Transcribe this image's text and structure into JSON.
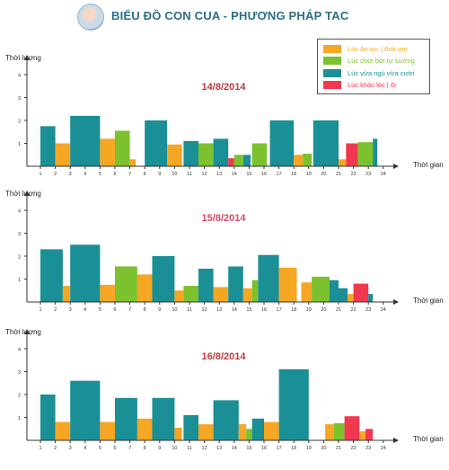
{
  "header": {
    "title": "BIỂU ĐỒ CON CUA - PHƯƠNG PHÁP TAC"
  },
  "legend": [
    {
      "label": "Lúc ăn no, | thỏi ưm",
      "color": "#f5a623"
    },
    {
      "label": "Lúc chơi bời tự sướng",
      "color": "#7bc22e"
    },
    {
      "label": "Lúc vừa ngủ vừa cười",
      "color": "#1a8f96"
    },
    {
      "label": "Lúc khóc lóc | ôi",
      "color": "#f0384e"
    }
  ],
  "chart_data": [
    {
      "type": "bar",
      "title": "14/8/2014",
      "ylabel": "Thời lượng",
      "xlabel": "Thời gian",
      "x_ticks": [
        "1",
        "2",
        "3",
        "4",
        "5",
        "6",
        "7",
        "8",
        "9",
        "10",
        "11",
        "12",
        "13",
        "14",
        "15",
        "16",
        "17",
        "18",
        "19",
        "20",
        "21",
        "22",
        "23",
        "24"
      ],
      "y_ticks": [
        "1",
        "2",
        "3",
        "4"
      ],
      "ylim": [
        0,
        4.5
      ],
      "bars": [
        {
          "start": 1,
          "end": 2,
          "value": 1.75,
          "category": "Lúc vừa ngủ vừa cười"
        },
        {
          "start": 2,
          "end": 3,
          "value": 1.0,
          "category": "Lúc ăn no, | thỏi ưm"
        },
        {
          "start": 3,
          "end": 5,
          "value": 2.2,
          "category": "Lúc vừa ngủ vừa cười"
        },
        {
          "start": 5,
          "end": 6,
          "value": 1.2,
          "category": "Lúc ăn no, | thỏi ưm"
        },
        {
          "start": 6,
          "end": 7,
          "value": 1.55,
          "category": "Lúc chơi bời tự sướng"
        },
        {
          "start": 7,
          "end": 7.4,
          "value": 0.3,
          "category": "Lúc ăn no, | thỏi ưm"
        },
        {
          "start": 8,
          "end": 9.5,
          "value": 2.0,
          "category": "Lúc vừa ngủ vừa cười"
        },
        {
          "start": 9.5,
          "end": 10.5,
          "value": 0.95,
          "category": "Lúc ăn no, | thỏi ưm"
        },
        {
          "start": 10.6,
          "end": 11.6,
          "value": 1.1,
          "category": "Lúc vừa ngủ vừa cười"
        },
        {
          "start": 11.6,
          "end": 12.6,
          "value": 1.0,
          "category": "Lúc chơi bời tự sướng"
        },
        {
          "start": 12.6,
          "end": 13.6,
          "value": 1.2,
          "category": "Lúc vừa ngủ vừa cười"
        },
        {
          "start": 13.6,
          "end": 14,
          "value": 0.35,
          "category": "Lúc khóc lóc | ôi"
        },
        {
          "start": 14,
          "end": 14.6,
          "value": 0.5,
          "category": "Lúc chơi bời tự sướng"
        },
        {
          "start": 14.6,
          "end": 15.1,
          "value": 0.5,
          "category": "Lúc vừa ngủ vừa cười"
        },
        {
          "start": 15.2,
          "end": 16.2,
          "value": 1.0,
          "category": "Lúc chơi bời tự sướng"
        },
        {
          "start": 16.4,
          "end": 18,
          "value": 2.0,
          "category": "Lúc vừa ngủ vừa cười"
        },
        {
          "start": 18,
          "end": 18.6,
          "value": 0.5,
          "category": "Lúc ăn no, | thỏi ưm"
        },
        {
          "start": 18.6,
          "end": 19.2,
          "value": 0.55,
          "category": "Lúc chơi bời tự sướng"
        },
        {
          "start": 19.3,
          "end": 21,
          "value": 2.0,
          "category": "Lúc vừa ngủ vừa cười"
        },
        {
          "start": 21,
          "end": 21.5,
          "value": 0.3,
          "category": "Lúc ăn no, | thỏi ưm"
        },
        {
          "start": 21.5,
          "end": 22.3,
          "value": 1.0,
          "category": "Lúc khóc lóc | ôi"
        },
        {
          "start": 22.3,
          "end": 23.3,
          "value": 1.05,
          "category": "Lúc chơi bời tự sướng"
        },
        {
          "start": 23.3,
          "end": 23.6,
          "value": 1.2,
          "category": "Lúc vừa ngủ vừa cười"
        }
      ]
    },
    {
      "type": "bar",
      "title": "15/8/2014",
      "ylabel": "Thời lượng",
      "xlabel": "Thời gian",
      "x_ticks": [
        "1",
        "2",
        "3",
        "4",
        "5",
        "6",
        "7",
        "8",
        "9",
        "10",
        "11",
        "12",
        "13",
        "14",
        "15",
        "16",
        "17",
        "18",
        "19",
        "20",
        "21",
        "22",
        "23",
        "24"
      ],
      "y_ticks": [
        "1",
        "2",
        "3",
        "4"
      ],
      "ylim": [
        0,
        4.5
      ],
      "bars": [
        {
          "start": 1,
          "end": 2.5,
          "value": 2.3,
          "category": "Lúc vừa ngủ vừa cười"
        },
        {
          "start": 2.5,
          "end": 3,
          "value": 0.7,
          "category": "Lúc ăn no, | thỏi ưm"
        },
        {
          "start": 3,
          "end": 5,
          "value": 2.5,
          "category": "Lúc vừa ngủ vừa cười"
        },
        {
          "start": 5,
          "end": 6,
          "value": 0.75,
          "category": "Lúc ăn no, | thỏi ưm"
        },
        {
          "start": 6,
          "end": 7.5,
          "value": 1.55,
          "category": "Lúc chơi bời tự sướng"
        },
        {
          "start": 7.5,
          "end": 8.5,
          "value": 1.2,
          "category": "Lúc ăn no, | thỏi ưm"
        },
        {
          "start": 8.5,
          "end": 10,
          "value": 2.0,
          "category": "Lúc vừa ngủ vừa cười"
        },
        {
          "start": 10,
          "end": 10.6,
          "value": 0.5,
          "category": "Lúc ăn no, | thỏi ưm"
        },
        {
          "start": 10.6,
          "end": 11.6,
          "value": 0.7,
          "category": "Lúc chơi bời tự sướng"
        },
        {
          "start": 11.6,
          "end": 12.6,
          "value": 1.45,
          "category": "Lúc vừa ngủ vừa cười"
        },
        {
          "start": 12.6,
          "end": 13.6,
          "value": 0.65,
          "category": "Lúc ăn no, | thỏi ưm"
        },
        {
          "start": 13.6,
          "end": 14.6,
          "value": 1.55,
          "category": "Lúc vừa ngủ vừa cười"
        },
        {
          "start": 14.6,
          "end": 15.2,
          "value": 0.6,
          "category": "Lúc ăn no, | thỏi ưm"
        },
        {
          "start": 15.2,
          "end": 15.6,
          "value": 0.95,
          "category": "Lúc chơi bời tự sướng"
        },
        {
          "start": 15.6,
          "end": 17,
          "value": 2.05,
          "category": "Lúc vừa ngủ vừa cười"
        },
        {
          "start": 17,
          "end": 18.2,
          "value": 1.5,
          "category": "Lúc ăn no, | thỏi ưm"
        },
        {
          "start": 18.5,
          "end": 19.2,
          "value": 0.85,
          "category": "Lúc ăn no, | thỏi ưm"
        },
        {
          "start": 19.2,
          "end": 20.4,
          "value": 1.1,
          "category": "Lúc chơi bời tự sướng"
        },
        {
          "start": 20.4,
          "end": 21,
          "value": 0.95,
          "category": "Lúc vừa ngủ vừa cười"
        },
        {
          "start": 21,
          "end": 21.6,
          "value": 0.6,
          "category": "Lúc vừa ngủ vừa cười"
        },
        {
          "start": 21.6,
          "end": 22,
          "value": 0.35,
          "category": "Lúc ăn no, | thỏi ưm"
        },
        {
          "start": 22,
          "end": 23,
          "value": 0.8,
          "category": "Lúc khóc lóc | ôi"
        },
        {
          "start": 23,
          "end": 23.3,
          "value": 0.35,
          "category": "Lúc vừa ngủ vừa cười"
        }
      ]
    },
    {
      "type": "bar",
      "title": "16/8/2014",
      "ylabel": "Thời lượng",
      "xlabel": "Thời gian",
      "x_ticks": [
        "1",
        "2",
        "3",
        "4",
        "5",
        "6",
        "7",
        "8",
        "9",
        "10",
        "11",
        "12",
        "13",
        "14",
        "15",
        "16",
        "17",
        "18",
        "19",
        "20",
        "21",
        "22",
        "23",
        "24"
      ],
      "y_ticks": [
        "1",
        "2",
        "3",
        "4"
      ],
      "ylim": [
        0,
        4.5
      ],
      "bars": [
        {
          "start": 1,
          "end": 2,
          "value": 2.0,
          "category": "Lúc vừa ngủ vừa cười"
        },
        {
          "start": 2,
          "end": 3,
          "value": 0.8,
          "category": "Lúc ăn no, | thỏi ưm"
        },
        {
          "start": 3,
          "end": 5,
          "value": 2.6,
          "category": "Lúc vừa ngủ vừa cười"
        },
        {
          "start": 5,
          "end": 6,
          "value": 0.8,
          "category": "Lúc ăn no, | thỏi ưm"
        },
        {
          "start": 6,
          "end": 7.5,
          "value": 1.85,
          "category": "Lúc vừa ngủ vừa cười"
        },
        {
          "start": 7.5,
          "end": 8.5,
          "value": 0.95,
          "category": "Lúc ăn no, | thỏi ưm"
        },
        {
          "start": 8.5,
          "end": 10,
          "value": 1.85,
          "category": "Lúc vừa ngủ vừa cười"
        },
        {
          "start": 10,
          "end": 10.5,
          "value": 0.55,
          "category": "Lúc ăn no, | thỏi ưm"
        },
        {
          "start": 10.6,
          "end": 11.6,
          "value": 1.1,
          "category": "Lúc vừa ngủ vừa cười"
        },
        {
          "start": 11.6,
          "end": 12.6,
          "value": 0.7,
          "category": "Lúc ăn no, | thỏi ưm"
        },
        {
          "start": 12.6,
          "end": 14.3,
          "value": 1.75,
          "category": "Lúc vừa ngủ vừa cười"
        },
        {
          "start": 14.3,
          "end": 14.8,
          "value": 0.7,
          "category": "Lúc ăn no, | thỏi ưm"
        },
        {
          "start": 14.8,
          "end": 15.2,
          "value": 0.5,
          "category": "Lúc chơi bời tự sướng"
        },
        {
          "start": 15.2,
          "end": 16,
          "value": 0.95,
          "category": "Lúc vừa ngủ vừa cười"
        },
        {
          "start": 16,
          "end": 17,
          "value": 0.8,
          "category": "Lúc ăn no, | thỏi ưm"
        },
        {
          "start": 17,
          "end": 19,
          "value": 3.1,
          "category": "Lúc vừa ngủ vừa cười"
        },
        {
          "start": 20.1,
          "end": 20.7,
          "value": 0.7,
          "category": "Lúc ăn no, | thỏi ưm"
        },
        {
          "start": 20.7,
          "end": 21.4,
          "value": 0.75,
          "category": "Lúc chơi bời tự sướng"
        },
        {
          "start": 21.4,
          "end": 22.4,
          "value": 1.05,
          "category": "Lúc khóc lóc | ôi"
        },
        {
          "start": 22.4,
          "end": 22.8,
          "value": 0.4,
          "category": "Lúc ăn no, | thỏi ưm"
        },
        {
          "start": 22.8,
          "end": 23.3,
          "value": 0.5,
          "category": "Lúc khóc lóc | ôi"
        }
      ]
    }
  ]
}
